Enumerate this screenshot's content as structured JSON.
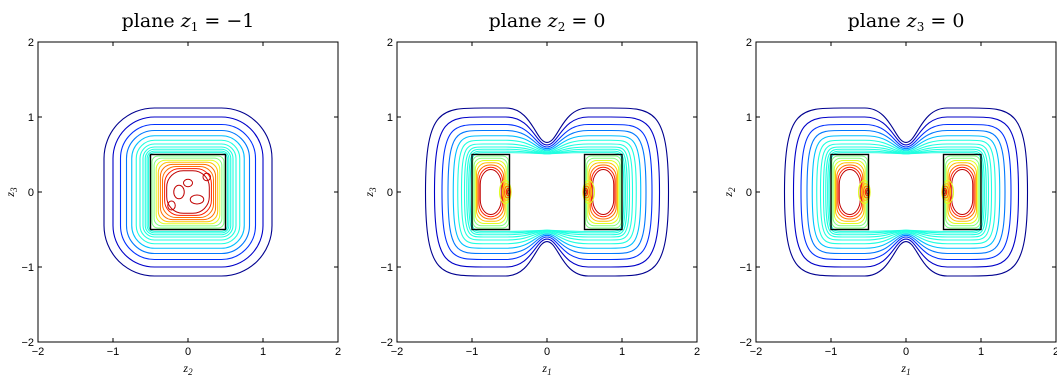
{
  "chart_data": [
    {
      "type": "contour",
      "title_text": "plane ",
      "title_var": "z",
      "title_sub": "1",
      "title_rest": " = −1",
      "xlabel_var": "z",
      "xlabel_sub": "2",
      "ylabel_var": "z",
      "ylabel_sub": "3",
      "xlim": [
        -2,
        2
      ],
      "ylim": [
        -2,
        2
      ],
      "xticks": [
        "−2",
        "−1",
        "0",
        "1",
        "2"
      ],
      "yticks": [
        "−2",
        "−1",
        "0",
        "1",
        "2"
      ],
      "boxes": [
        {
          "x": [
            -0.5,
            0.5
          ],
          "y": [
            -0.5,
            0.5
          ]
        }
      ],
      "centers": [
        [
          0,
          0
        ]
      ],
      "hot_spots": [],
      "grid": false
    },
    {
      "type": "contour",
      "title_text": "plane ",
      "title_var": "z",
      "title_sub": "2",
      "title_rest": " = 0",
      "xlabel_var": "z",
      "xlabel_sub": "1",
      "ylabel_var": "z",
      "ylabel_sub": "3",
      "xlim": [
        -2,
        2
      ],
      "ylim": [
        -2,
        2
      ],
      "xticks": [
        "−2",
        "−1",
        "0",
        "1",
        "2"
      ],
      "yticks": [
        "−2",
        "−1",
        "0",
        "1",
        "2"
      ],
      "boxes": [
        {
          "x": [
            -1,
            -0.5
          ],
          "y": [
            -0.5,
            0.5
          ]
        },
        {
          "x": [
            0.5,
            1
          ],
          "y": [
            -0.5,
            0.5
          ]
        }
      ],
      "centers": [
        [
          -0.75,
          0
        ],
        [
          0.75,
          0
        ]
      ],
      "hot_spots": [
        [
          -0.5,
          0
        ],
        [
          0.5,
          0
        ]
      ],
      "grid": false
    },
    {
      "type": "contour",
      "title_text": "plane ",
      "title_var": "z",
      "title_sub": "3",
      "title_rest": " = 0",
      "xlabel_var": "z",
      "xlabel_sub": "1",
      "ylabel_var": "z",
      "ylabel_sub": "2",
      "xlim": [
        -2,
        2
      ],
      "ylim": [
        -2,
        2
      ],
      "xticks": [
        "−2",
        "−1",
        "0",
        "1",
        "2"
      ],
      "yticks": [
        "−2",
        "−1",
        "0",
        "1",
        "2"
      ],
      "boxes": [
        {
          "x": [
            -1,
            -0.5
          ],
          "y": [
            -0.5,
            0.5
          ]
        },
        {
          "x": [
            0.5,
            1
          ],
          "y": [
            -0.5,
            0.5
          ]
        }
      ],
      "centers": [
        [
          -0.75,
          0
        ],
        [
          0.75,
          0
        ]
      ],
      "hot_spots": [
        [
          -0.5,
          0
        ],
        [
          0.5,
          0
        ]
      ],
      "grid": false
    }
  ],
  "contour_colors": [
    "#00008f",
    "#0000c8",
    "#0030ff",
    "#0078ff",
    "#00c0ff",
    "#20ffe0",
    "#80ff80",
    "#e0ff20",
    "#ffc000",
    "#ff7000",
    "#ff2000",
    "#c00000"
  ],
  "box_color": "#000000"
}
